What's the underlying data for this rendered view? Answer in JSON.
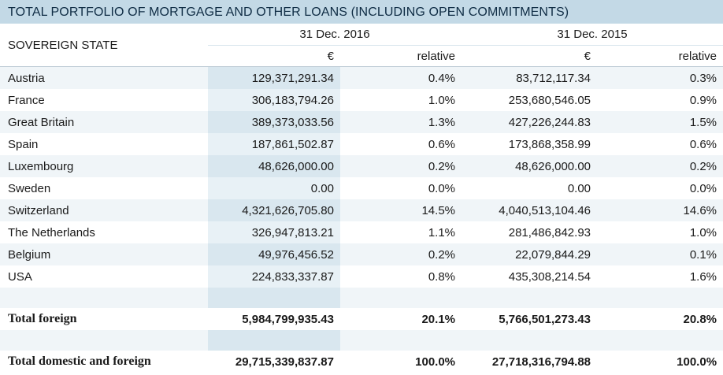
{
  "title": "TOTAL PORTFOLIO OF MORTGAGE AND OTHER LOANS (INCLUDING OPEN COMMITMENTS)",
  "header": {
    "state_label": "SOVEREIGN STATE",
    "period1": "31 Dec. 2016",
    "period2": "31 Dec. 2015",
    "currency": "€",
    "relative": "relative"
  },
  "rows": [
    {
      "state": "Austria",
      "v2016": "129,371,291.34",
      "r2016": "0.4%",
      "v2015": "83,712,117.34",
      "r2015": "0.3%"
    },
    {
      "state": "France",
      "v2016": "306,183,794.26",
      "r2016": "1.0%",
      "v2015": "253,680,546.05",
      "r2015": "0.9%"
    },
    {
      "state": "Great Britain",
      "v2016": "389,373,033.56",
      "r2016": "1.3%",
      "v2015": "427,226,244.83",
      "r2015": "1.5%"
    },
    {
      "state": "Spain",
      "v2016": "187,861,502.87",
      "r2016": "0.6%",
      "v2015": "173,868,358.99",
      "r2015": "0.6%"
    },
    {
      "state": "Luxembourg",
      "v2016": "48,626,000.00",
      "r2016": "0.2%",
      "v2015": "48,626,000.00",
      "r2015": "0.2%"
    },
    {
      "state": "Sweden",
      "v2016": "0.00",
      "r2016": "0.0%",
      "v2015": "0.00",
      "r2015": "0.0%"
    },
    {
      "state": "Switzerland",
      "v2016": "4,321,626,705.80",
      "r2016": "14.5%",
      "v2015": "4,040,513,104.46",
      "r2015": "14.6%"
    },
    {
      "state": "The Netherlands",
      "v2016": "326,947,813.21",
      "r2016": "1.1%",
      "v2015": "281,486,842.93",
      "r2015": "1.0%"
    },
    {
      "state": "Belgium",
      "v2016": "49,976,456.52",
      "r2016": "0.2%",
      "v2015": "22,079,844.29",
      "r2015": "0.1%"
    },
    {
      "state": "USA",
      "v2016": "224,833,337.87",
      "r2016": "0.8%",
      "v2015": "435,308,214.54",
      "r2015": "1.6%"
    }
  ],
  "total_foreign": {
    "label": "Total foreign",
    "v2016": "5,984,799,935.43",
    "r2016": "20.1%",
    "v2015": "5,766,501,273.43",
    "r2015": "20.8%"
  },
  "total_all": {
    "label": "Total domestic and foreign",
    "v2016": "29,715,339,837.87",
    "r2016": "100.0%",
    "v2015": "27,718,316,794.88",
    "r2015": "100.0%"
  },
  "colors": {
    "title_bg": "#c3d9e6",
    "title_text": "#0f2c44",
    "band": "#f0f5f8",
    "band_col": "#d9e7ef"
  }
}
